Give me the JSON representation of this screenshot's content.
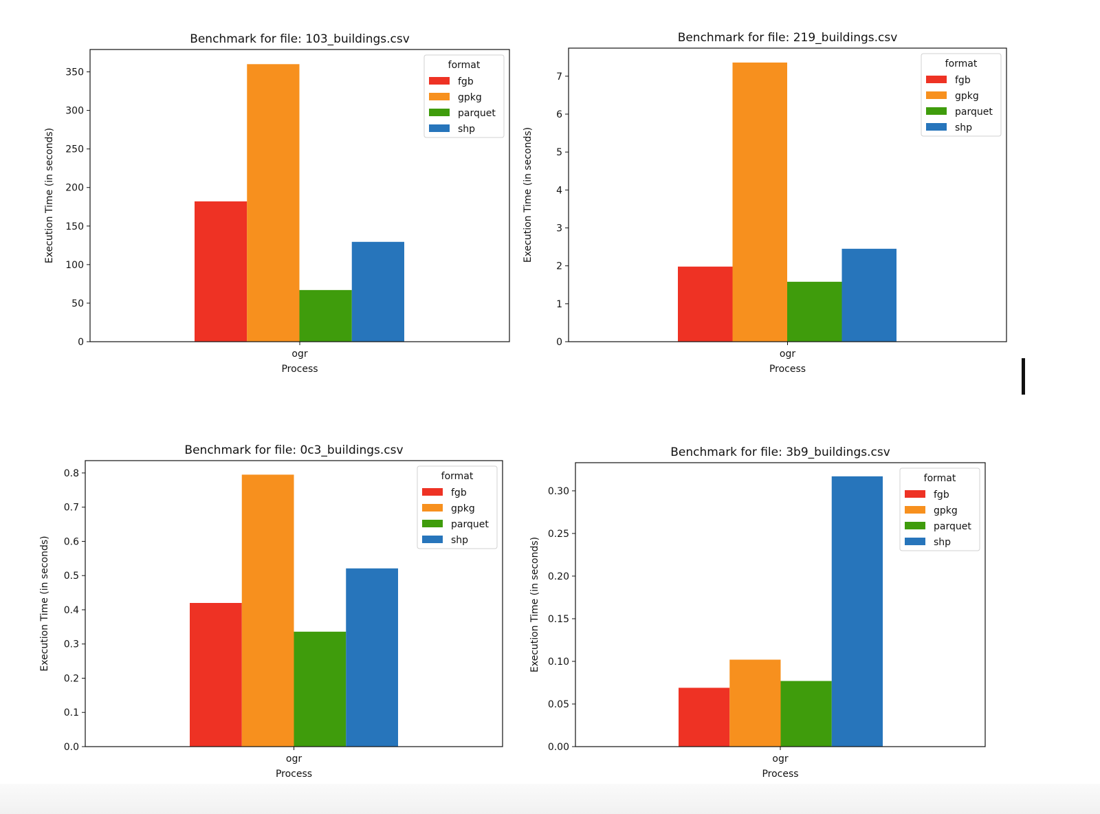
{
  "chart_data": [
    {
      "type": "bar",
      "title": "Benchmark for file: 103_buildings.csv",
      "xlabel": "Process",
      "ylabel": "Execution Time (in seconds)",
      "categories": [
        "ogr"
      ],
      "ylim": [
        0,
        379
      ],
      "yticks": [
        "0",
        "50",
        "100",
        "150",
        "200",
        "250",
        "300",
        "350"
      ],
      "legend": {
        "title": "format",
        "placement": "top-right"
      },
      "series": [
        {
          "name": "fgb",
          "values": [
            182
          ],
          "color": "#ee3224"
        },
        {
          "name": "gpkg",
          "values": [
            360
          ],
          "color": "#f7901e"
        },
        {
          "name": "parquet",
          "values": [
            67
          ],
          "color": "#3f9c0c"
        },
        {
          "name": "shp",
          "values": [
            129.5
          ],
          "color": "#2775bb"
        }
      ]
    },
    {
      "type": "bar",
      "title": "Benchmark for file: 219_buildings.csv",
      "xlabel": "Process",
      "ylabel": "Execution Time (in seconds)",
      "categories": [
        "ogr"
      ],
      "ylim": [
        0,
        7.74
      ],
      "yticks": [
        "0",
        "1",
        "2",
        "3",
        "4",
        "5",
        "6",
        "7"
      ],
      "legend": {
        "title": "format",
        "placement": "top-right"
      },
      "series": [
        {
          "name": "fgb",
          "values": [
            1.98
          ],
          "color": "#ee3224"
        },
        {
          "name": "gpkg",
          "values": [
            7.36
          ],
          "color": "#f7901e"
        },
        {
          "name": "parquet",
          "values": [
            1.58
          ],
          "color": "#3f9c0c"
        },
        {
          "name": "shp",
          "values": [
            2.45
          ],
          "color": "#2775bb"
        }
      ]
    },
    {
      "type": "bar",
      "title": "Benchmark for file: 0c3_buildings.csv",
      "xlabel": "Process",
      "ylabel": "Execution Time (in seconds)",
      "categories": [
        "ogr"
      ],
      "ylim": [
        0,
        0.836
      ],
      "yticks": [
        "0.0",
        "0.1",
        "0.2",
        "0.3",
        "0.4",
        "0.5",
        "0.6",
        "0.7",
        "0.8"
      ],
      "legend": {
        "title": "format",
        "placement": "top-right"
      },
      "series": [
        {
          "name": "fgb",
          "values": [
            0.42
          ],
          "color": "#ee3224"
        },
        {
          "name": "gpkg",
          "values": [
            0.795
          ],
          "color": "#f7901e"
        },
        {
          "name": "parquet",
          "values": [
            0.336
          ],
          "color": "#3f9c0c"
        },
        {
          "name": "shp",
          "values": [
            0.521
          ],
          "color": "#2775bb"
        }
      ]
    },
    {
      "type": "bar",
      "title": "Benchmark for file: 3b9_buildings.csv",
      "xlabel": "Process",
      "ylabel": "Execution Time (in seconds)",
      "categories": [
        "ogr"
      ],
      "ylim": [
        0,
        0.333
      ],
      "yticks": [
        "0.00",
        "0.05",
        "0.10",
        "0.15",
        "0.20",
        "0.25",
        "0.30"
      ],
      "legend": {
        "title": "format",
        "placement": "top-right"
      },
      "series": [
        {
          "name": "fgb",
          "values": [
            0.069
          ],
          "color": "#ee3224"
        },
        {
          "name": "gpkg",
          "values": [
            0.102
          ],
          "color": "#f7901e"
        },
        {
          "name": "parquet",
          "values": [
            0.077
          ],
          "color": "#3f9c0c"
        },
        {
          "name": "shp",
          "values": [
            0.317
          ],
          "color": "#2775bb"
        }
      ]
    }
  ]
}
